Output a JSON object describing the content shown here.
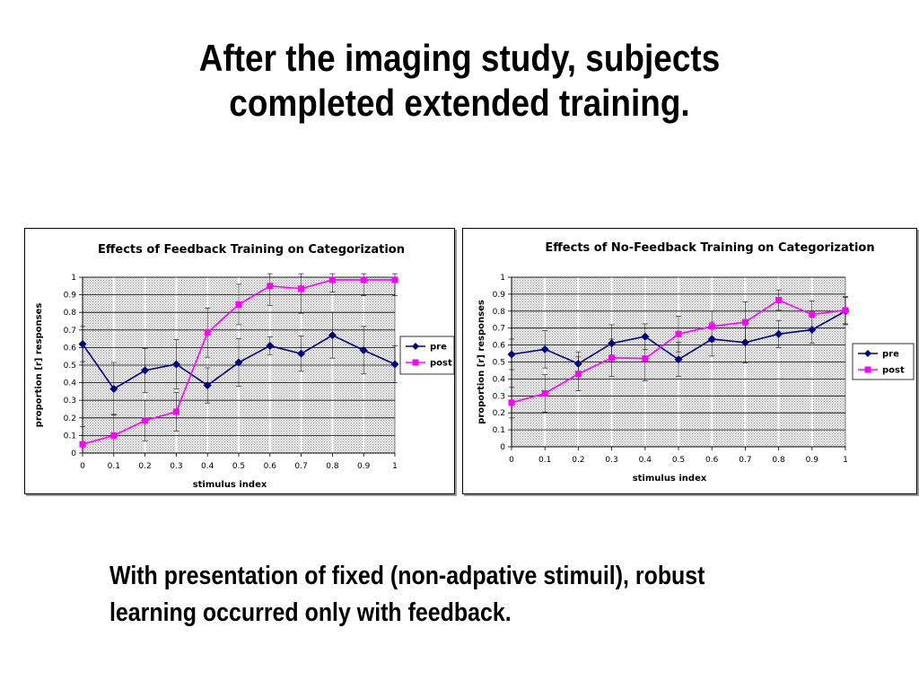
{
  "slide": {
    "title_line1": "After the imaging study, subjects",
    "title_line2": "completed extended training.",
    "caption_line1": "With presentation of fixed (non-adpative stimuil), robust",
    "caption_line2": "learning occurred only with feedback."
  },
  "colors": {
    "pre": "#000080",
    "post": "#ff00ff",
    "plot_background": "#c8c8c8",
    "gridline": "#000000"
  },
  "chart_data": [
    {
      "type": "line",
      "title": "Effects of Feedback Training on Categorization",
      "xlabel": "stimulus index",
      "ylabel": "proportion [r] responses",
      "x": [
        0,
        0.1,
        0.2,
        0.3,
        0.4,
        0.5,
        0.6,
        0.7,
        0.8,
        0.9,
        1
      ],
      "x_tick_labels": [
        "0",
        "0.1",
        "0.2",
        "0.3",
        "0.4",
        "0.5",
        "0.6",
        "0.7",
        "0.8",
        "0.9",
        "1"
      ],
      "y_tick_labels": [
        "0",
        "0.1",
        "0.2",
        "0.3",
        "0.4",
        "0.5",
        "0.6",
        "0.7",
        "0.8",
        "0.9",
        "1"
      ],
      "ylim": [
        0,
        1
      ],
      "grid": true,
      "legend_position": "right",
      "series": [
        {
          "name": "pre",
          "marker": "diamond",
          "values": [
            0.62,
            0.365,
            0.47,
            0.505,
            0.385,
            0.515,
            0.61,
            0.565,
            0.67,
            0.585,
            0.505
          ],
          "error": [
            0.1,
            0.15,
            0.125,
            0.14,
            0.1,
            0.135,
            0.05,
            0.1,
            0.13,
            0.135,
            0.105
          ]
        },
        {
          "name": "post",
          "marker": "square",
          "values": [
            0.05,
            0.1,
            0.185,
            0.235,
            0.685,
            0.845,
            0.95,
            0.935,
            0.985,
            0.985,
            0.985
          ],
          "error": [
            0.1,
            0.12,
            0.115,
            0.11,
            0.14,
            0.115,
            0.11,
            0.14,
            0.07,
            0.09,
            0.09
          ]
        }
      ]
    },
    {
      "type": "line",
      "title": "Effects of No-Feedback Training on Categorization",
      "xlabel": "stimulus index",
      "ylabel": "proportion [r] responses",
      "x": [
        0,
        0.1,
        0.2,
        0.3,
        0.4,
        0.5,
        0.6,
        0.7,
        0.8,
        0.9,
        1
      ],
      "x_tick_labels": [
        "0",
        "0.1",
        "0.2",
        "0.3",
        "0.4",
        "0.5",
        "0.6",
        "0.7",
        "0.8",
        "0.9",
        "1"
      ],
      "y_tick_labels": [
        "0",
        "0.1",
        "0.2",
        "0.3",
        "0.4",
        "0.5",
        "0.6",
        "0.7",
        "0.8",
        "0.9",
        "1"
      ],
      "ylim": [
        0,
        1
      ],
      "grid": true,
      "legend_position": "right",
      "series": [
        {
          "name": "pre",
          "marker": "diamond",
          "values": [
            0.545,
            0.575,
            0.49,
            0.61,
            0.65,
            0.515,
            0.635,
            0.615,
            0.665,
            0.69,
            0.8
          ],
          "error": [
            0.09,
            0.11,
            0.07,
            0.11,
            0.075,
            0.1,
            0.1,
            0.12,
            0.08,
            0.08,
            0.08
          ]
        },
        {
          "name": "post",
          "marker": "square",
          "values": [
            0.26,
            0.315,
            0.43,
            0.525,
            0.52,
            0.665,
            0.71,
            0.735,
            0.865,
            0.78,
            0.805
          ],
          "error": [
            0.09,
            0.11,
            0.1,
            0.11,
            0.13,
            0.105,
            0.09,
            0.12,
            0.06,
            0.08,
            0.08
          ]
        }
      ]
    }
  ]
}
